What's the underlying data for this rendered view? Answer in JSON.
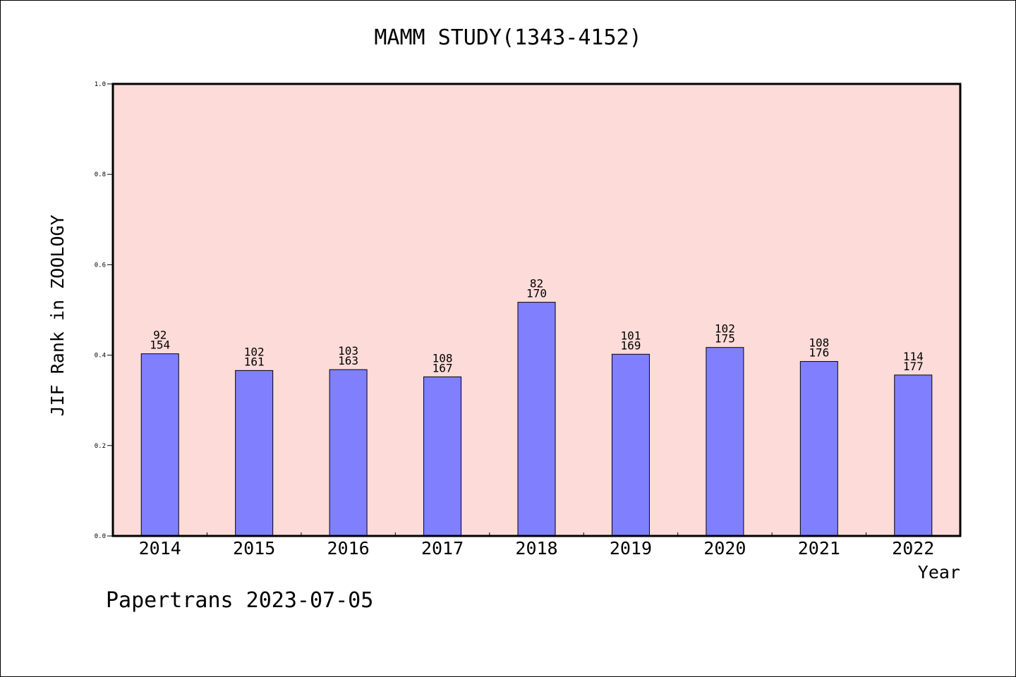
{
  "chart_data": {
    "type": "bar",
    "title": "MAMM STUDY(1343-4152)",
    "xlabel": "Year",
    "ylabel": "JIF Rank in ZOOLOGY",
    "categories": [
      "2014",
      "2015",
      "2016",
      "2017",
      "2018",
      "2019",
      "2020",
      "2021",
      "2022"
    ],
    "values": [
      0.403,
      0.366,
      0.368,
      0.352,
      0.517,
      0.402,
      0.417,
      0.386,
      0.356
    ],
    "rank_labels": [
      "92",
      "102",
      "103",
      "108",
      "82",
      "101",
      "102",
      "108",
      "114"
    ],
    "total_labels": [
      "154",
      "161",
      "163",
      "167",
      "170",
      "169",
      "175",
      "176",
      "177"
    ],
    "ylim": [
      0,
      1.0
    ],
    "yticks": [
      "0.0",
      "0.2",
      "0.4",
      "0.6",
      "0.8",
      "1.0"
    ],
    "grid": false,
    "colors": {
      "plot_background": "#fddbd8",
      "bar": "#8080ff"
    }
  },
  "footer": {
    "watermark": "Papertrans 2023-07-05"
  }
}
